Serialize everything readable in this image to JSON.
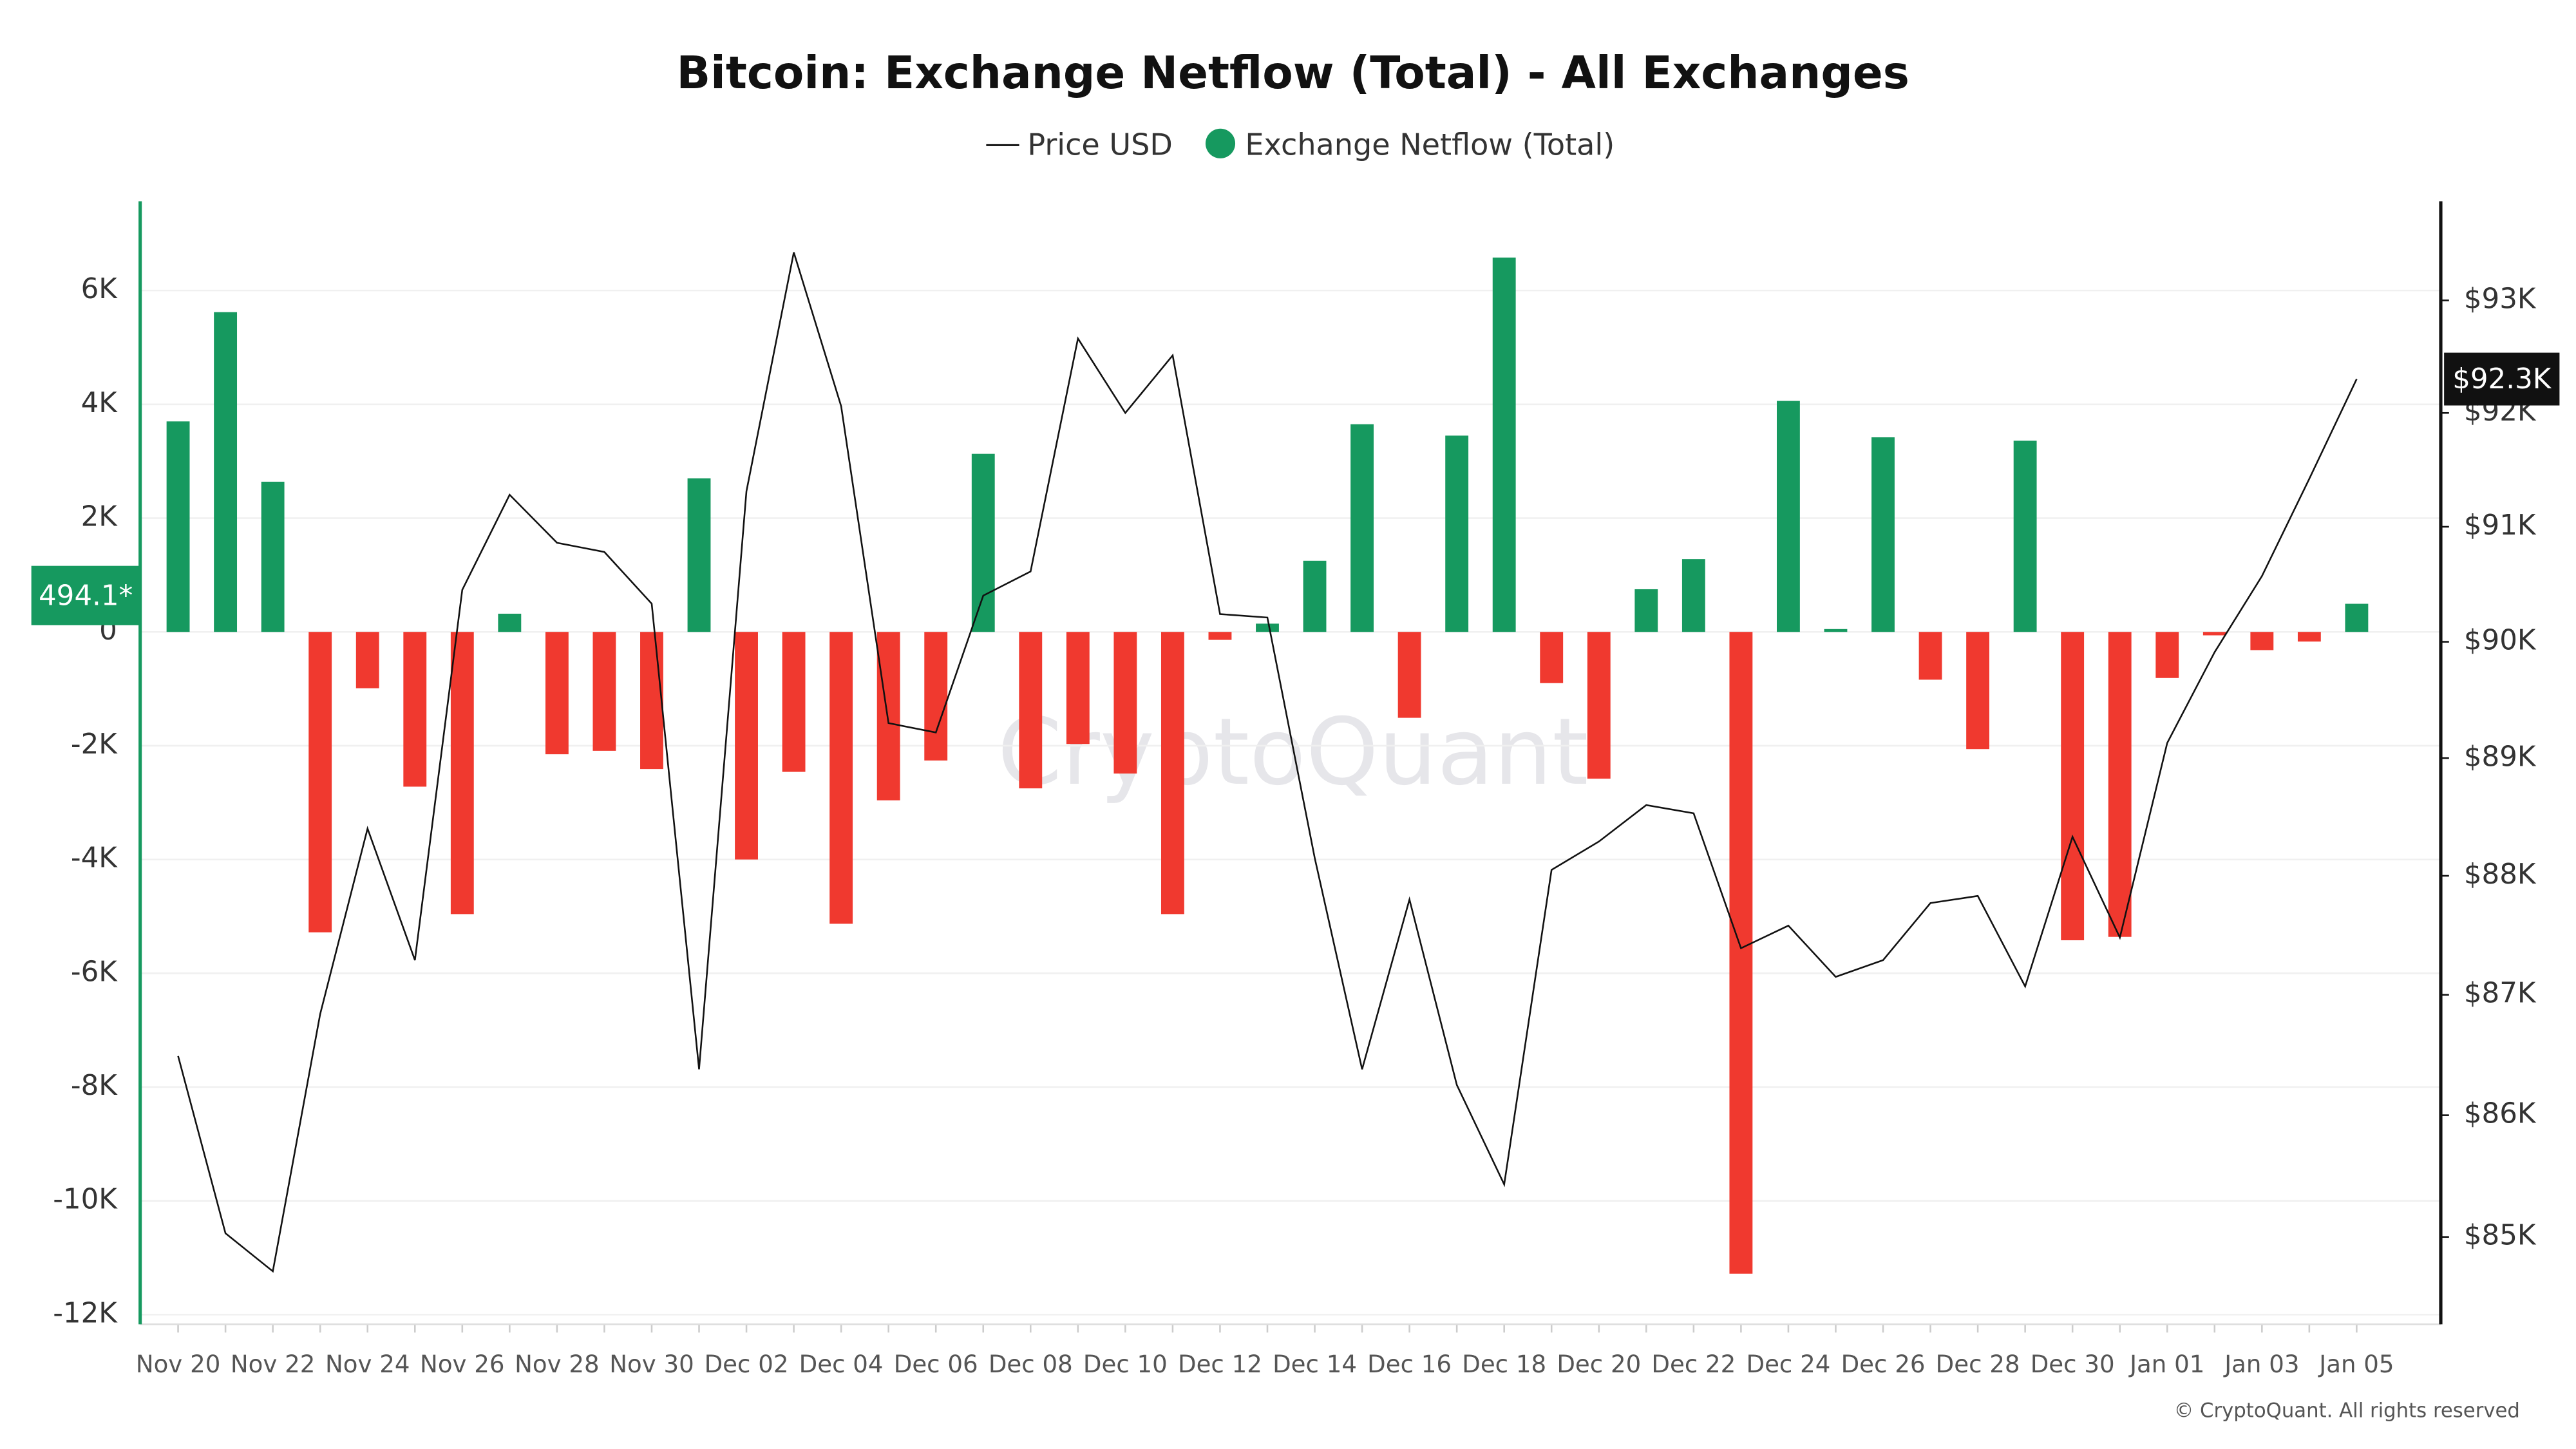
{
  "chart_data": {
    "type": "bar",
    "title": "Bitcoin: Exchange Netflow (Total) - All Exchanges",
    "watermark": "CryptoQuant",
    "copyright": "© CryptoQuant. All rights reserved",
    "categories": [
      "Nov 20",
      null,
      "Nov 22",
      null,
      "Nov 24",
      null,
      "Nov 26",
      null,
      "Nov 28",
      null,
      "Nov 30",
      null,
      "Dec 02",
      null,
      "Dec 04",
      null,
      "Dec 06",
      null,
      "Dec 08",
      null,
      "Dec 10",
      null,
      "Dec 12",
      null,
      "Dec 14",
      null,
      "Dec 16",
      null,
      "Dec 18",
      null,
      "Dec 20",
      null,
      "Dec 22",
      null,
      "Dec 24",
      null,
      "Dec 26",
      null,
      "Dec 28",
      null,
      "Dec 30",
      null,
      "Jan 01",
      null,
      "Jan 03",
      null,
      "Jan 05"
    ],
    "series": [
      {
        "name": "Exchange Netflow (Total)",
        "type": "bar",
        "color": "#16995f",
        "negative_color": "#f0392f",
        "values": [
          3700,
          5620,
          2640,
          -5280,
          -990,
          -2720,
          -4960,
          320,
          -2150,
          -2090,
          -2410,
          2700,
          -4000,
          -2460,
          -5130,
          -2960,
          -2260,
          3130,
          -2750,
          -1970,
          -2490,
          -4960,
          -140,
          145,
          1250,
          3650,
          -1510,
          3450,
          6580,
          -900,
          -2580,
          750,
          1280,
          -11280,
          4060,
          50,
          3420,
          -840,
          -2060,
          3360,
          -5420,
          -5360,
          -810,
          -60,
          -320,
          -170,
          494.1
        ],
        "value_labels": [
          null,
          null,
          null,
          null,
          null,
          null,
          null,
          null,
          null,
          null,
          null,
          null,
          null,
          null,
          null,
          null,
          null,
          null,
          null,
          null,
          null,
          null,
          null,
          null,
          null,
          null,
          null,
          null,
          null,
          null,
          null,
          null,
          null,
          null,
          null,
          null,
          null,
          null,
          null,
          null,
          null,
          null,
          null,
          null,
          null,
          null,
          "494.1*"
        ]
      },
      {
        "name": "Price USD",
        "type": "line",
        "axis": "y2",
        "color": "#111111",
        "values": [
          86490,
          85030,
          84720,
          86840,
          88400,
          87290,
          90450,
          91280,
          90860,
          90780,
          90330,
          86380,
          91310,
          93430,
          92060,
          89300,
          89220,
          90400,
          90610,
          92660,
          92000,
          92510,
          90240,
          90210,
          88150,
          86380,
          87800,
          86250,
          85430,
          88050,
          88290,
          88600,
          88530,
          87390,
          87580,
          87150,
          87290,
          87770,
          87830,
          87070,
          88330,
          87480,
          89130,
          89910,
          90570,
          91420,
          92300
        ],
        "value_labels": [
          null,
          null,
          null,
          null,
          null,
          null,
          null,
          null,
          null,
          null,
          null,
          null,
          null,
          null,
          null,
          null,
          null,
          null,
          null,
          null,
          null,
          null,
          null,
          null,
          null,
          null,
          null,
          null,
          null,
          null,
          null,
          null,
          null,
          null,
          null,
          null,
          null,
          null,
          null,
          null,
          null,
          null,
          null,
          null,
          null,
          null,
          "$92.3K"
        ]
      }
    ],
    "ylim": [
      -12170,
      7570
    ],
    "yticks": [
      {
        "value": 6000,
        "label": "6K"
      },
      {
        "value": 4000,
        "label": "4K"
      },
      {
        "value": 2000,
        "label": "2K"
      },
      0,
      {
        "value": -2000,
        "label": "-2K"
      },
      {
        "value": -4000,
        "label": "-4K"
      },
      {
        "value": -6000,
        "label": "-6K"
      },
      {
        "value": -8000,
        "label": "-8K"
      },
      {
        "value": -10000,
        "label": "-10K"
      },
      {
        "value": -12000,
        "label": "-12K"
      }
    ],
    "y2lim": [
      84290,
      93890
    ],
    "y2scale": "log",
    "y2ticks": [
      {
        "value": 85000,
        "label": "$85K"
      },
      {
        "value": 86000,
        "label": "$86K"
      },
      {
        "value": 87000,
        "label": "$87K"
      },
      {
        "value": 88000,
        "label": "$88K"
      },
      {
        "value": 89000,
        "label": "$89K"
      },
      {
        "value": 90000,
        "label": "$90K"
      },
      {
        "value": 91000,
        "label": "$91K"
      },
      {
        "value": 92000,
        "label": "$92K"
      },
      {
        "value": 93000,
        "label": "$93K"
      }
    ],
    "grid": true
  }
}
